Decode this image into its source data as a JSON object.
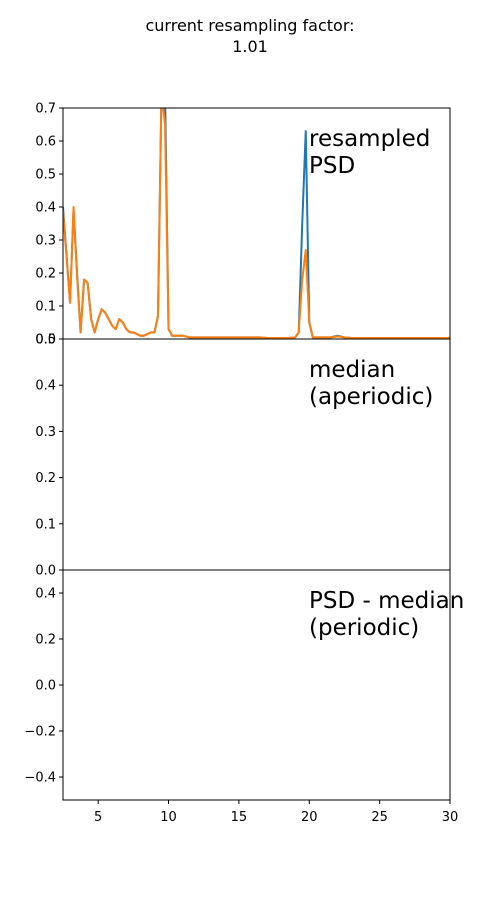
{
  "figure": {
    "title_line1": "current resampling factor:",
    "title_line2": "1.01"
  },
  "chart_data": [
    {
      "type": "line",
      "panel": "top",
      "annotation": [
        "resampled",
        "PSD"
      ],
      "xlim": [
        2.5,
        30
      ],
      "ylim": [
        0,
        0.7
      ],
      "yticks": [
        0.0,
        0.1,
        0.2,
        0.3,
        0.4,
        0.5,
        0.6,
        0.7
      ],
      "ytick_labels": [
        "0.0",
        "0.1",
        "0.2",
        "0.3",
        "0.4",
        "0.5",
        "0.6",
        "0.7"
      ],
      "colors": [
        "#1f77b4",
        "#ff7f0e"
      ],
      "series": [
        {
          "x": [
            2.5,
            3.0,
            3.25,
            3.5,
            3.75,
            4.0,
            4.25,
            4.5,
            4.75,
            5.0,
            5.25,
            5.5,
            5.75,
            6.0,
            6.25,
            6.5,
            6.75,
            7.0,
            7.25,
            7.5,
            7.75,
            8.0,
            8.25,
            8.5,
            8.75,
            9.0,
            9.25,
            9.5,
            9.75,
            10.0,
            10.25,
            10.5,
            10.75,
            11.0,
            11.5,
            12.0,
            12.5,
            13.0,
            13.5,
            14.0,
            14.5,
            15.0,
            15.5,
            16.0,
            16.5,
            17.0,
            17.5,
            18.0,
            18.5,
            19.0,
            19.25,
            19.5,
            19.75,
            20.0,
            20.25,
            20.5,
            20.75,
            21.0,
            21.5,
            22.0,
            22.5,
            23.0,
            24.0,
            25.0,
            26.0,
            27.0,
            28.0,
            29.0,
            30.0
          ],
          "y": [
            0.4,
            0.11,
            0.39,
            0.2,
            0.02,
            0.18,
            0.17,
            0.06,
            0.02,
            0.06,
            0.09,
            0.08,
            0.06,
            0.04,
            0.03,
            0.06,
            0.05,
            0.03,
            0.02,
            0.02,
            0.015,
            0.01,
            0.01,
            0.015,
            0.02,
            0.02,
            0.07,
            0.75,
            0.75,
            0.03,
            0.01,
            0.01,
            0.01,
            0.01,
            0.005,
            0.005,
            0.005,
            0.005,
            0.005,
            0.005,
            0.005,
            0.005,
            0.005,
            0.005,
            0.005,
            0.003,
            0.003,
            0.003,
            0.003,
            0.005,
            0.02,
            0.35,
            0.63,
            0.05,
            0.005,
            0.005,
            0.005,
            0.005,
            0.005,
            0.01,
            0.005,
            0.003,
            0.003,
            0.003,
            0.003,
            0.003,
            0.003,
            0.003,
            0.003
          ]
        },
        {
          "x": [
            2.5,
            3.0,
            3.25,
            3.5,
            3.75,
            4.0,
            4.25,
            4.5,
            4.75,
            5.0,
            5.25,
            5.5,
            5.75,
            6.0,
            6.25,
            6.5,
            6.75,
            7.0,
            7.25,
            7.5,
            7.75,
            8.0,
            8.25,
            8.5,
            8.75,
            9.0,
            9.25,
            9.5,
            9.75,
            10.0,
            10.25,
            10.5,
            10.75,
            11.0,
            11.5,
            12.0,
            12.5,
            13.0,
            13.5,
            14.0,
            14.5,
            15.0,
            15.5,
            16.0,
            16.5,
            17.0,
            17.5,
            18.0,
            18.5,
            19.0,
            19.25,
            19.5,
            19.75,
            20.0,
            20.25,
            20.5,
            20.75,
            21.0,
            21.5,
            22.0,
            22.5,
            23.0,
            24.0,
            25.0,
            26.0,
            27.0,
            28.0,
            29.0,
            30.0
          ],
          "y": [
            0.39,
            0.11,
            0.4,
            0.19,
            0.02,
            0.18,
            0.17,
            0.06,
            0.02,
            0.06,
            0.09,
            0.08,
            0.06,
            0.04,
            0.03,
            0.06,
            0.05,
            0.03,
            0.02,
            0.02,
            0.015,
            0.01,
            0.01,
            0.015,
            0.02,
            0.02,
            0.07,
            0.75,
            0.65,
            0.03,
            0.01,
            0.01,
            0.01,
            0.01,
            0.005,
            0.005,
            0.005,
            0.005,
            0.005,
            0.005,
            0.005,
            0.005,
            0.005,
            0.005,
            0.005,
            0.003,
            0.003,
            0.003,
            0.003,
            0.005,
            0.02,
            0.18,
            0.27,
            0.05,
            0.005,
            0.005,
            0.005,
            0.005,
            0.005,
            0.008,
            0.005,
            0.003,
            0.003,
            0.003,
            0.003,
            0.003,
            0.003,
            0.003,
            0.003
          ]
        }
      ]
    },
    {
      "type": "line",
      "panel": "middle",
      "annotation": [
        "median",
        "(aperiodic)"
      ],
      "xlim": [
        2.5,
        30
      ],
      "ylim": [
        0,
        0.5
      ],
      "yticks": [
        0.0,
        0.1,
        0.2,
        0.3,
        0.4,
        0.5
      ],
      "ytick_labels": [
        "0.0",
        "0.1",
        "0.2",
        "0.3",
        "0.4",
        "0.5"
      ],
      "series": []
    },
    {
      "type": "line",
      "panel": "bottom",
      "annotation": [
        "PSD - median",
        "(periodic)"
      ],
      "xlim": [
        2.5,
        30
      ],
      "ylim": [
        -0.5,
        0.5
      ],
      "yticks": [
        -0.4,
        -0.2,
        0.0,
        0.2,
        0.4
      ],
      "ytick_labels": [
        "−0.4",
        "−0.2",
        "0.0",
        "0.2",
        "0.4"
      ],
      "xticks": [
        5,
        10,
        15,
        20,
        25,
        30
      ],
      "xtick_labels": [
        "5",
        "10",
        "15",
        "20",
        "25",
        "30"
      ],
      "series": []
    }
  ]
}
